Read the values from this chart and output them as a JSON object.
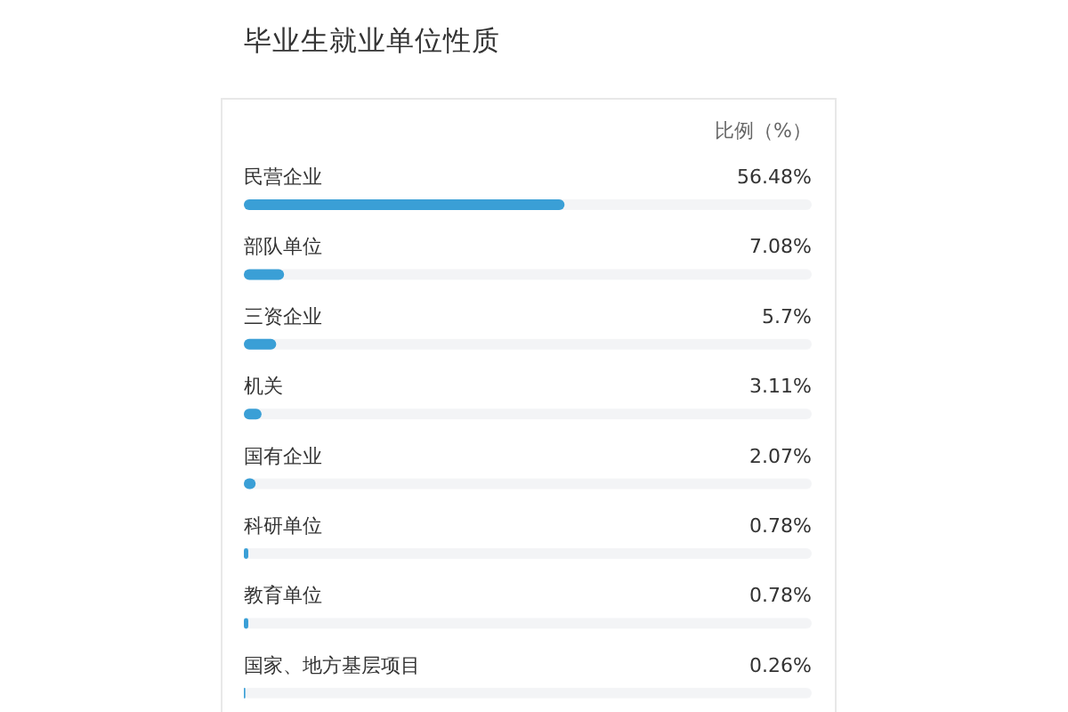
{
  "chart_data": {
    "type": "bar",
    "orientation": "horizontal",
    "title": "毕业生就业单位性质",
    "xlabel": "比例（%）",
    "categories": [
      "民营企业",
      "部队单位",
      "三资企业",
      "机关",
      "国有企业",
      "科研单位",
      "教育单位",
      "国家、地方基层项目"
    ],
    "values": [
      56.48,
      7.08,
      5.7,
      3.11,
      2.07,
      0.78,
      0.78,
      0.26
    ],
    "value_labels": [
      "56.48%",
      "7.08%",
      "5.7%",
      "3.11%",
      "2.07%",
      "0.78%",
      "0.78%",
      "0.26%"
    ],
    "color": "#3a9fd6",
    "xlim": [
      0,
      100
    ]
  }
}
